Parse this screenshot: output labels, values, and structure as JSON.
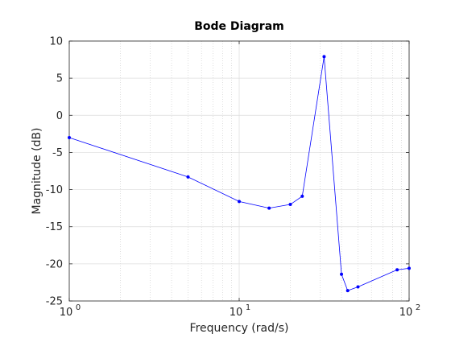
{
  "chart_data": {
    "type": "line",
    "title": "Bode Diagram",
    "xlabel": "Frequency  (rad/s)",
    "ylabel": "Magnitude (dB)",
    "xscale": "log",
    "xlim": [
      1,
      100
    ],
    "ylim": [
      -25,
      10
    ],
    "grid": true,
    "minor_grid": true,
    "x_ticks": [
      {
        "value": 1,
        "base": "10",
        "exp": "0"
      },
      {
        "value": 10,
        "base": "10",
        "exp": "1"
      },
      {
        "value": 100,
        "base": "10",
        "exp": "2"
      }
    ],
    "y_ticks": [
      10,
      5,
      0,
      -5,
      -10,
      -15,
      -20,
      -25
    ],
    "y_tick_labels": [
      "10",
      "5",
      "0",
      "-5",
      "-10",
      "-15",
      "-20",
      "-25"
    ],
    "series": [
      {
        "color": "#0000ff",
        "x": [
          1,
          5,
          10,
          15,
          20,
          23.5,
          31.6,
          40,
          43.5,
          50,
          85,
          100
        ],
        "y": [
          -3,
          -8.3,
          -11.6,
          -12.5,
          -12.0,
          -10.9,
          7.9,
          -21.4,
          -23.6,
          -23.1,
          -20.8,
          -20.6
        ]
      }
    ]
  }
}
